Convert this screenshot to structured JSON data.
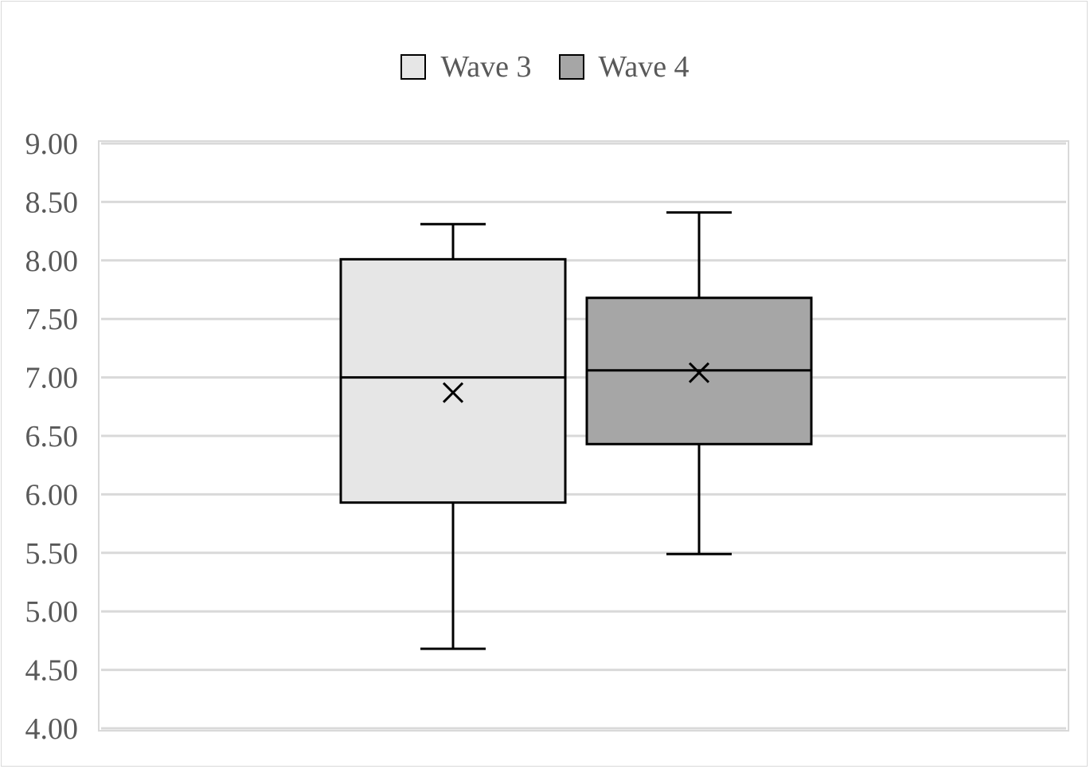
{
  "chart_data": {
    "type": "box",
    "title": "",
    "xlabel": "",
    "ylabel": "",
    "ylim": [
      4.0,
      9.0
    ],
    "yticks": [
      "4.00",
      "4.50",
      "5.00",
      "5.50",
      "6.00",
      "6.50",
      "7.00",
      "7.50",
      "8.00",
      "8.50",
      "9.00"
    ],
    "grid": true,
    "legend_position": "top-center",
    "series": [
      {
        "name": "Wave 3",
        "color": "#e6e6e6",
        "min": 4.68,
        "q1": 5.93,
        "median": 7.0,
        "q3": 8.01,
        "max": 8.31,
        "mean": 6.87
      },
      {
        "name": "Wave 4",
        "color": "#a6a6a6",
        "min": 5.49,
        "q1": 6.43,
        "median": 7.06,
        "q3": 7.68,
        "max": 8.41,
        "mean": 7.04
      }
    ]
  }
}
